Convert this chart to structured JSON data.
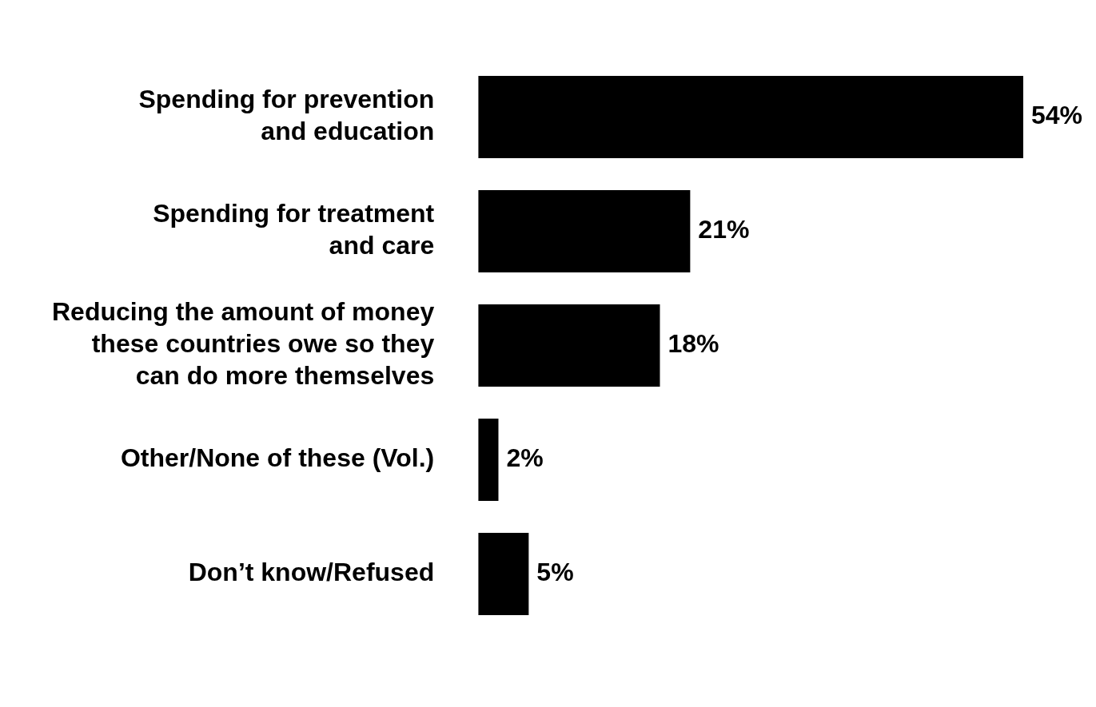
{
  "chart_data": {
    "type": "bar",
    "orientation": "horizontal",
    "categories": [
      "Spending for prevention\nand education",
      "Spending for treatment\nand care",
      "Reducing the amount of money\nthese countries owe so they\ncan do more themselves",
      "Other/None of these (Vol.)",
      "Don’t know/Refused"
    ],
    "values": [
      54,
      21,
      18,
      2,
      5
    ],
    "value_labels": [
      "54%",
      "21%",
      "18%",
      "2%",
      "5%"
    ],
    "color": "#000000",
    "tick_labels": "y"
  }
}
